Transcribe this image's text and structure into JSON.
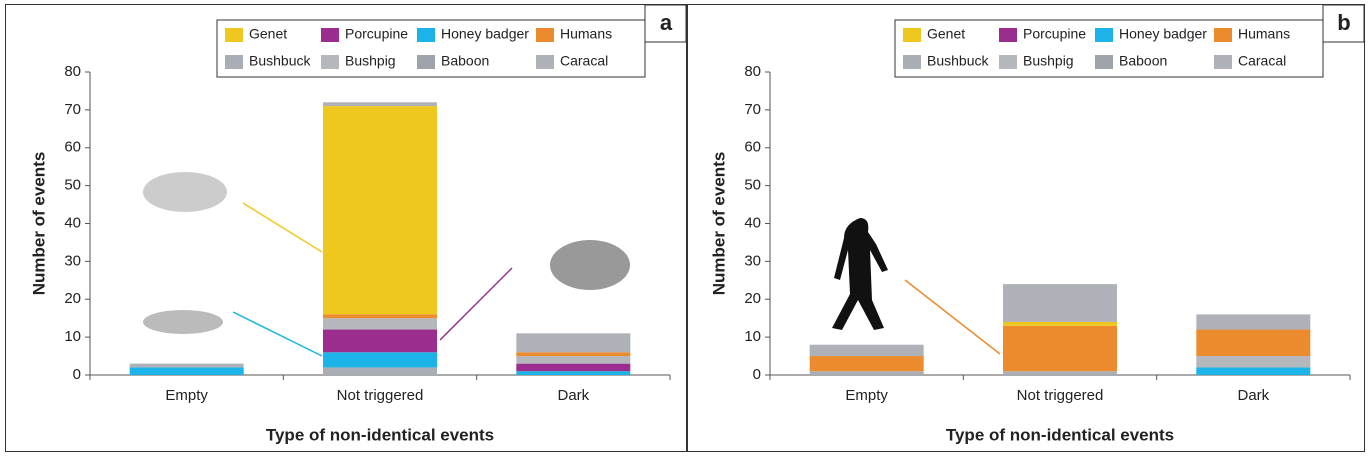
{
  "chart_data": [
    {
      "type": "stacked_bar",
      "panel_label": "a",
      "xlabel": "Type of non-identical events",
      "ylabel": "Number of events",
      "categories": [
        "Empty",
        "Not triggered",
        "Dark"
      ],
      "ylim": [
        0,
        80
      ],
      "yticks": [
        0,
        10,
        20,
        30,
        40,
        50,
        60,
        70,
        80
      ],
      "legend": "top-right",
      "series": [
        {
          "name": "Bushbuck",
          "color": "#a9adb4",
          "values": [
            0,
            2,
            0
          ]
        },
        {
          "name": "Honey badger",
          "color": "#1bb3e8",
          "values": [
            2,
            4,
            1
          ]
        },
        {
          "name": "Porcupine",
          "color": "#9b2d8e",
          "values": [
            0,
            6,
            2
          ]
        },
        {
          "name": "Bushpig",
          "color": "#b4b8bd",
          "values": [
            0,
            3,
            2
          ]
        },
        {
          "name": "Humans",
          "color": "#ec8b2e",
          "values": [
            0,
            1,
            1
          ]
        },
        {
          "name": "Genet",
          "color": "#efc81f",
          "values": [
            0,
            55,
            0
          ]
        },
        {
          "name": "Baboon",
          "color": "#9fa4ab",
          "values": [
            0,
            0,
            0
          ]
        },
        {
          "name": "Caracal",
          "color": "#aeb2b8",
          "values": [
            1,
            1,
            5
          ]
        }
      ]
    },
    {
      "type": "stacked_bar",
      "panel_label": "b",
      "xlabel": "Type of non-identical events",
      "ylabel": "Number of events",
      "categories": [
        "Empty",
        "Not triggered",
        "Dark"
      ],
      "ylim": [
        0,
        80
      ],
      "yticks": [
        0,
        10,
        20,
        30,
        40,
        50,
        60,
        70,
        80
      ],
      "legend": "top-right",
      "series": [
        {
          "name": "Bushbuck",
          "color": "#a9adb4",
          "values": [
            1,
            1,
            0
          ]
        },
        {
          "name": "Honey badger",
          "color": "#1bb3e8",
          "values": [
            0,
            0,
            2
          ]
        },
        {
          "name": "Porcupine",
          "color": "#9b2d8e",
          "values": [
            0,
            0,
            0
          ]
        },
        {
          "name": "Bushpig",
          "color": "#b4b8bd",
          "values": [
            0,
            0,
            3
          ]
        },
        {
          "name": "Humans",
          "color": "#ec8b2e",
          "values": [
            4,
            12,
            7
          ]
        },
        {
          "name": "Genet",
          "color": "#efc81f",
          "values": [
            0,
            1,
            0
          ]
        },
        {
          "name": "Baboon",
          "color": "#9fa4ab",
          "values": [
            0,
            0,
            0
          ]
        },
        {
          "name": "Caracal",
          "color": "#aeb2b8",
          "values": [
            3,
            10,
            4
          ]
        }
      ]
    }
  ]
}
